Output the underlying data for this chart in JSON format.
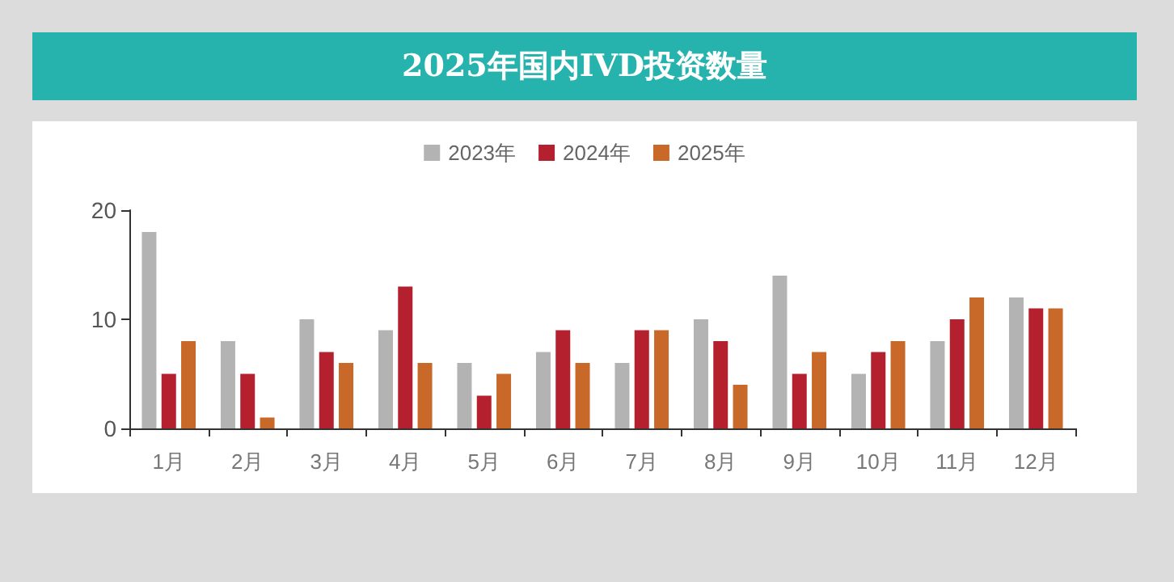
{
  "chart_data": {
    "type": "bar",
    "title": "2025年国内IVD投资数量",
    "categories": [
      "1月",
      "2月",
      "3月",
      "4月",
      "5月",
      "6月",
      "7月",
      "8月",
      "9月",
      "10月",
      "11月",
      "12月"
    ],
    "series": [
      {
        "name": "2023年",
        "color": "#b3b3b3",
        "values": [
          18,
          8,
          10,
          9,
          6,
          7,
          6,
          10,
          14,
          5,
          8,
          12
        ]
      },
      {
        "name": "2024年",
        "color": "#b5202e",
        "values": [
          5,
          5,
          7,
          13,
          3,
          9,
          9,
          8,
          5,
          7,
          10,
          11
        ]
      },
      {
        "name": "2025年",
        "color": "#c8692a",
        "values": [
          8,
          1,
          6,
          6,
          5,
          6,
          9,
          4,
          7,
          8,
          12,
          11
        ]
      }
    ],
    "ylim": [
      0,
      20
    ],
    "yticks": [
      0,
      10,
      20
    ],
    "grid": false,
    "legend": "top"
  }
}
